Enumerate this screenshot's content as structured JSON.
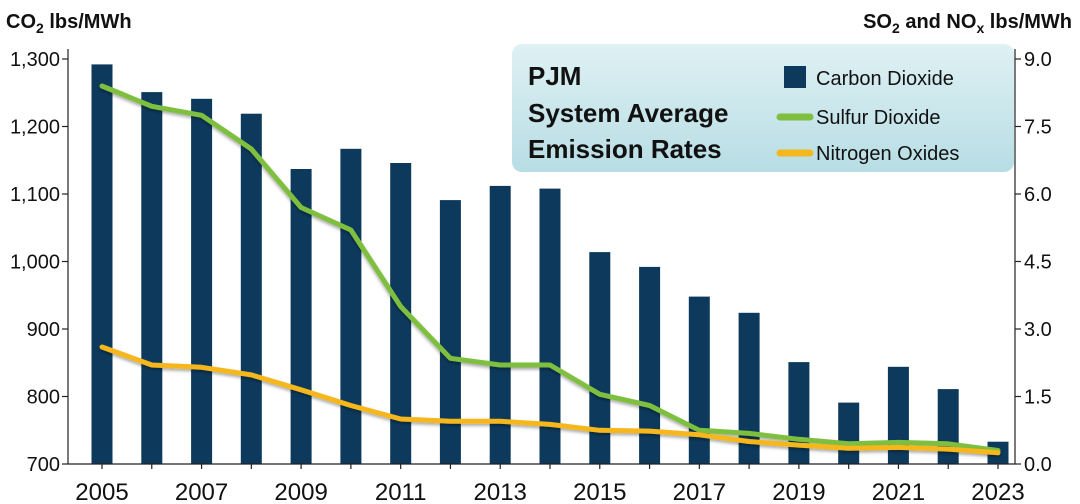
{
  "chart_data": {
    "type": "bar+line",
    "title_lines": [
      "PJM",
      "System Average",
      "Emission Rates"
    ],
    "left_axis": {
      "title_prefix": "CO",
      "title_sub": "2",
      "title_suffix": " lbs/MWh",
      "range": [
        700,
        1300
      ],
      "ticks": [
        "700",
        "800",
        "900",
        "1,000",
        "1,100",
        "1,200",
        "1,300"
      ]
    },
    "right_axis": {
      "title_a": "SO",
      "title_a_sub": "2",
      "title_mid": " and NO",
      "title_b_sub": "x",
      "title_suffix": " lbs/MWh",
      "range": [
        0,
        9
      ],
      "ticks": [
        "0.0",
        "1.5",
        "3.0",
        "4.5",
        "6.0",
        "7.5",
        "9.0"
      ]
    },
    "x_labels": [
      "2005",
      "2007",
      "2009",
      "2011",
      "2013",
      "2015",
      "2017",
      "2019",
      "2021",
      "2023"
    ],
    "years": [
      2005,
      2006,
      2007,
      2008,
      2009,
      2010,
      2011,
      2012,
      2013,
      2014,
      2015,
      2016,
      2017,
      2018,
      2019,
      2020,
      2021,
      2022,
      2023
    ],
    "series": [
      {
        "name": "Carbon Dioxide",
        "kind": "bar",
        "axis": "left",
        "color": "#0d3a5c",
        "values": [
          1292,
          1251,
          1241,
          1219,
          1137,
          1167,
          1146,
          1091,
          1112,
          1108,
          1014,
          992,
          948,
          924,
          851,
          791,
          844,
          811,
          733
        ]
      },
      {
        "name": "Sulfur Dioxide",
        "kind": "line",
        "axis": "right",
        "color": "#7fbf3f",
        "values": [
          8.4,
          7.95,
          7.75,
          7.0,
          5.7,
          5.2,
          3.5,
          2.35,
          2.2,
          2.2,
          1.55,
          1.3,
          0.75,
          0.68,
          0.55,
          0.45,
          0.48,
          0.45,
          0.3
        ]
      },
      {
        "name": "Nitrogen Oxides",
        "kind": "line",
        "axis": "right",
        "color": "#f5b71e",
        "values": [
          2.6,
          2.2,
          2.15,
          1.98,
          1.65,
          1.3,
          1.0,
          0.95,
          0.95,
          0.88,
          0.75,
          0.73,
          0.65,
          0.5,
          0.42,
          0.35,
          0.37,
          0.33,
          0.25
        ]
      }
    ],
    "legend_position": "top-right",
    "grid": false
  }
}
